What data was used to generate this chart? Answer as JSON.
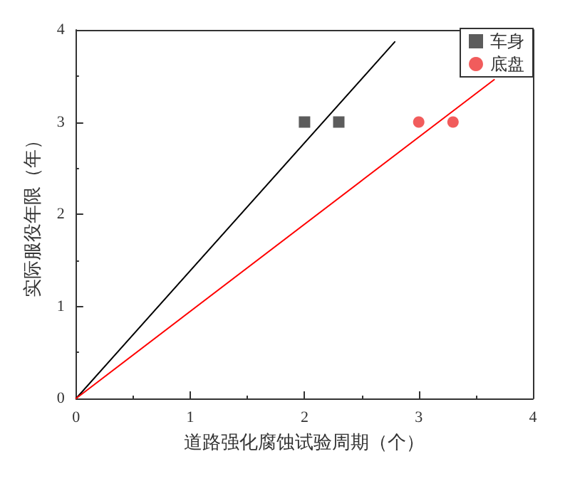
{
  "chart_data": {
    "type": "scatter",
    "xlabel": "道路强化腐蚀试验周期（个）",
    "ylabel": "实际服役年限（年）",
    "xlim": [
      0,
      4
    ],
    "ylim": [
      0,
      4
    ],
    "xticks": [
      0,
      1,
      2,
      3,
      4
    ],
    "yticks": [
      0,
      1,
      2,
      3,
      4
    ],
    "grid": false,
    "legend": "top right",
    "series": [
      {
        "name": "车身",
        "marker": "square",
        "color": "#333333",
        "x": [
          2,
          2.3
        ],
        "values": [
          3,
          3
        ]
      },
      {
        "name": "底盘",
        "marker": "circle",
        "color": "#ee3333",
        "x": [
          3,
          3.3
        ],
        "values": [
          3,
          3
        ]
      },
      {
        "type": "line",
        "marker": "none",
        "color": "#000000",
        "x": [
          0,
          2.79
        ],
        "values": [
          0,
          3.87
        ]
      },
      {
        "type": "line",
        "marker": "none",
        "color": "#ff0000",
        "x": [
          0,
          3.66
        ],
        "values": [
          0,
          3.46
        ]
      }
    ]
  }
}
